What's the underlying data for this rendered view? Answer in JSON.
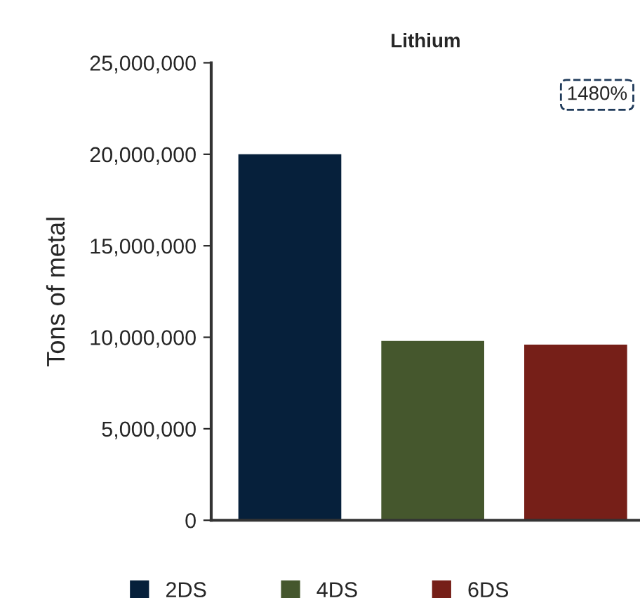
{
  "chart_data": {
    "type": "bar",
    "title": "Lithium",
    "ylabel": "Tons of metal",
    "categories": [
      null,
      null,
      null
    ],
    "series": [
      {
        "name": "2DS",
        "color": "#06203b",
        "values": [
          20000000,
          null,
          null
        ]
      },
      {
        "name": "4DS",
        "color": "#45572d",
        "values": [
          null,
          9800000,
          null
        ]
      },
      {
        "name": "6DS",
        "color": "#761f18",
        "values": [
          null,
          null,
          9600000
        ]
      }
    ],
    "ylim": [
      0,
      25000000
    ],
    "yticks": [
      {
        "value": 0,
        "label": "0"
      },
      {
        "value": 5000000,
        "label": "5,000,000"
      },
      {
        "value": 10000000,
        "label": "10,000,000"
      },
      {
        "value": 15000000,
        "label": "15,000,000"
      },
      {
        "value": 20000000,
        "label": "20,000,000"
      },
      {
        "value": 25000000,
        "label": "25,000,000"
      }
    ],
    "annotations": [
      "1480%"
    ],
    "legend": "bottom",
    "grid": false
  }
}
